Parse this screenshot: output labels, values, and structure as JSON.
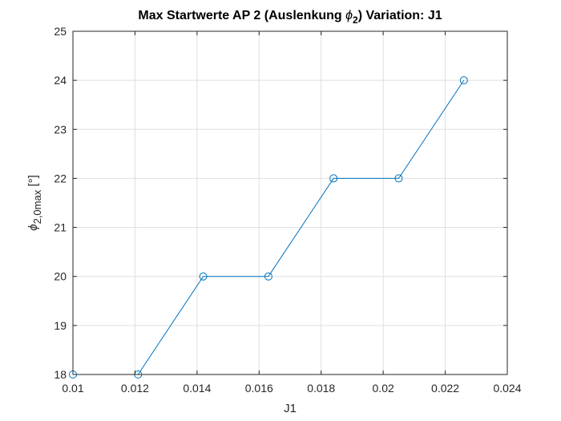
{
  "chart_data": {
    "type": "line",
    "title": {
      "prefix": "Max Startwerte AP 2 (Auslenkung ",
      "symbol": "ϕ",
      "subscript": "2",
      "suffix": ")  Variation: J1"
    },
    "xlabel": "J1",
    "ylabel": {
      "symbol": "ϕ",
      "subscript": "2,0max",
      "unit": " [°]"
    },
    "xlim": [
      0.01,
      0.024
    ],
    "ylim": [
      18,
      25
    ],
    "x_ticks": [
      0.01,
      0.012,
      0.014,
      0.016,
      0.018,
      0.02,
      0.022,
      0.024
    ],
    "x_tick_labels": [
      "0.01",
      "0.012",
      "0.014",
      "0.016",
      "0.018",
      "0.02",
      "0.022",
      "0.024"
    ],
    "y_ticks": [
      18,
      19,
      20,
      21,
      22,
      23,
      24,
      25
    ],
    "y_tick_labels": [
      "18",
      "19",
      "20",
      "21",
      "22",
      "23",
      "24",
      "25"
    ],
    "grid": true,
    "series": [
      {
        "x": [
          0.01,
          0.0121,
          0.0142,
          0.0163,
          0.0184,
          0.0205,
          0.0226
        ],
        "y": [
          18,
          18,
          20,
          20,
          22,
          22,
          24
        ],
        "color": "#0072bd",
        "marker": "circle"
      }
    ]
  }
}
